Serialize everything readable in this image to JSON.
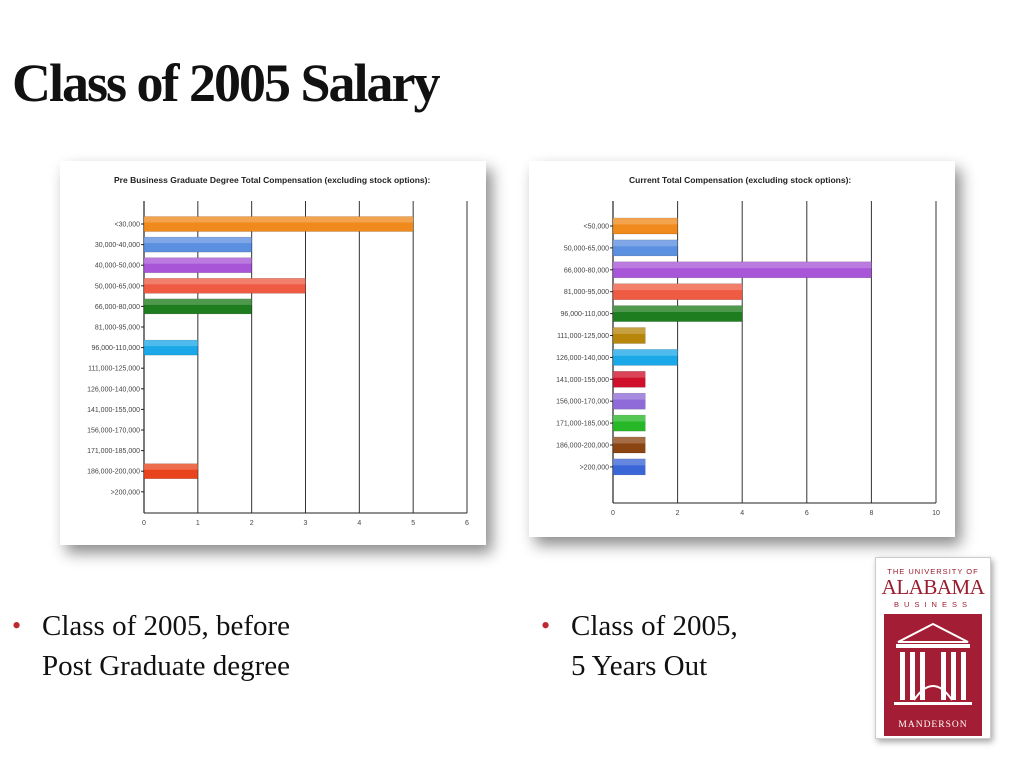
{
  "slide": {
    "title": "Class of 2005 Salary",
    "bullets": [
      {
        "lines": [
          "Class of 2005, before",
          "Post Graduate degree"
        ]
      },
      {
        "lines": [
          "Class of 2005,",
          "5 Years Out"
        ]
      }
    ]
  },
  "logo": {
    "line1": "THE UNIVERSITY OF",
    "line2": "ALABAMA",
    "line3": "BUSINESS",
    "line4": "MANDERSON",
    "color": "#a31e34"
  },
  "accent_color": "#c0282f",
  "chart_data": [
    {
      "type": "bar",
      "orientation": "horizontal",
      "title": "Pre Business Graduate Degree Total Compensation (excluding stock options):",
      "categories": [
        "<30,000",
        "30,000-40,000",
        "40,000-50,000",
        "50,000-65,000",
        "66,000-80,000",
        "81,000-95,000",
        "96,000-110,000",
        "111,000-125,000",
        "126,000-140,000",
        "141,000-155,000",
        "156,000-170,000",
        "171,000-185,000",
        "186,000-200,000",
        ">200,000"
      ],
      "values": [
        5,
        2,
        2,
        3,
        2,
        0,
        1,
        0,
        0,
        0,
        0,
        0,
        1,
        0
      ],
      "colors": [
        "#f08a1c",
        "#5b8fe0",
        "#a855d8",
        "#ef5a43",
        "#1e7d1e",
        "#999999",
        "#1ba8e8",
        "#999999",
        "#999999",
        "#999999",
        "#999999",
        "#999999",
        "#e8431c",
        "#999999"
      ],
      "xlim": [
        0,
        6
      ],
      "xticks": [
        0,
        1,
        2,
        3,
        4,
        5,
        6
      ],
      "grid": true
    },
    {
      "type": "bar",
      "orientation": "horizontal",
      "title": "Current Total Compensation (excluding stock options):",
      "categories": [
        "<50,000",
        "50,000-65,000",
        "66,000-80,000",
        "81,000-95,000",
        "96,000-110,000",
        "111,000-125,000",
        "126,000-140,000",
        "141,000-155,000",
        "156,000-170,000",
        "171,000-185,000",
        "186,000-200,000",
        ">200,000"
      ],
      "values": [
        2,
        2,
        8,
        4,
        4,
        1,
        2,
        1,
        1,
        1,
        1,
        1
      ],
      "colors": [
        "#f08a1c",
        "#5b8fe0",
        "#a855d8",
        "#ef5a43",
        "#1e7d1e",
        "#b8860b",
        "#1ba8e8",
        "#d0102a",
        "#8e6bd8",
        "#26b826",
        "#8b4513",
        "#3a66d8"
      ],
      "xlim": [
        0,
        10
      ],
      "xticks": [
        0,
        2,
        4,
        6,
        8,
        10
      ],
      "grid": true
    }
  ]
}
